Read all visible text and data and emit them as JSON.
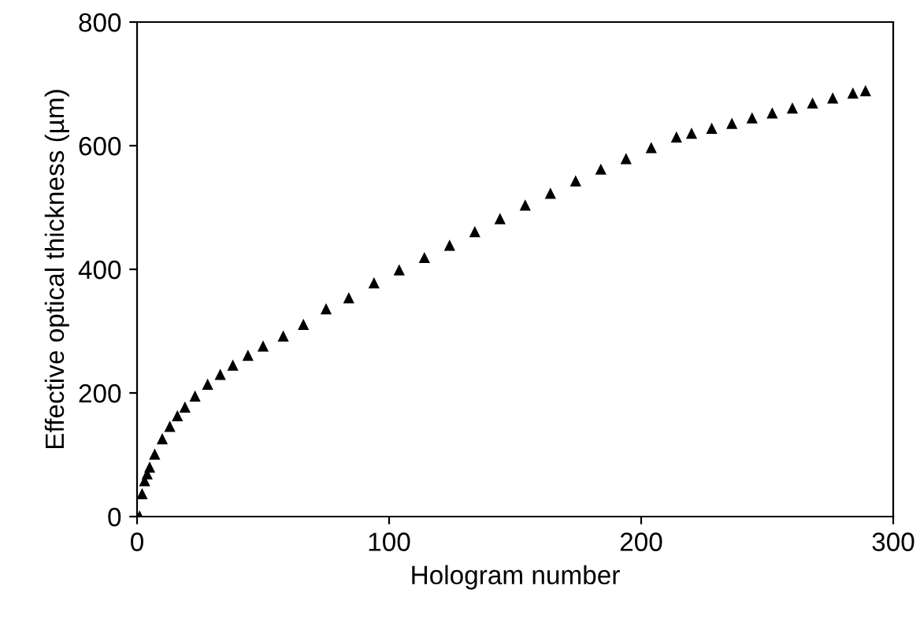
{
  "chart_data": {
    "type": "scatter",
    "xlabel": "Hologram number",
    "ylabel": "Effective optical thickness (µm)",
    "x": [
      1,
      2,
      3,
      4,
      5,
      7,
      10,
      13,
      16,
      19,
      23,
      28,
      33,
      38,
      44,
      50,
      58,
      66,
      75,
      84,
      94,
      104,
      114,
      124,
      134,
      144,
      154,
      164,
      174,
      184,
      194,
      204,
      214,
      220,
      228,
      236,
      244,
      252,
      260,
      268,
      276,
      284,
      289
    ],
    "series": [
      {
        "color": "#000000",
        "values": [
          0,
          36,
          57,
          68,
          79,
          100,
          125,
          145,
          162,
          176,
          194,
          213,
          229,
          244,
          260,
          275,
          291,
          310,
          335,
          353,
          377,
          398,
          418,
          438,
          460,
          481,
          503,
          522,
          542,
          561,
          578,
          596,
          613,
          619,
          627,
          635,
          644,
          652,
          660,
          668,
          676,
          684,
          688
        ]
      }
    ],
    "xlim": [
      0,
      300
    ],
    "ylim": [
      0,
      800
    ],
    "xticks": [
      0,
      100,
      200,
      300
    ],
    "yticks": [
      0,
      200,
      400,
      600,
      800
    ],
    "marker": "triangle",
    "grid": false,
    "legend": false
  }
}
